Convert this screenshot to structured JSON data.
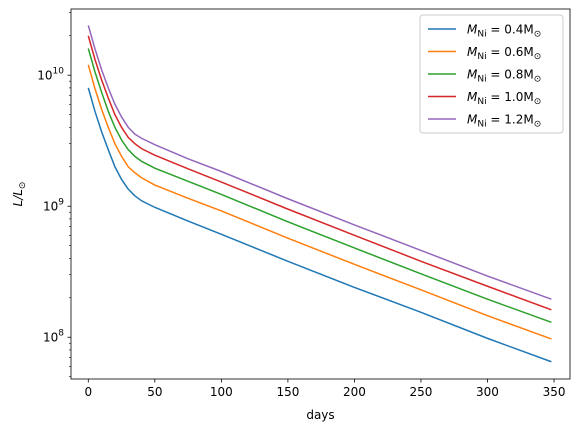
{
  "chart_data": {
    "type": "line",
    "title": "",
    "xlabel": "days",
    "ylabel": "L/L_⊙",
    "yscale": "log",
    "xlim": [
      -13,
      362
    ],
    "ylim": [
      48000000,
      32000000000
    ],
    "xticks": [
      0,
      50,
      100,
      150,
      200,
      250,
      300,
      350
    ],
    "xtick_labels": [
      "0",
      "50",
      "100",
      "150",
      "200",
      "250",
      "300",
      "350"
    ],
    "yticks": [
      100000000,
      1000000000,
      10000000000
    ],
    "ytick_labels": [
      {
        "base": "10",
        "exp": "8"
      },
      {
        "base": "10",
        "exp": "9"
      },
      {
        "base": "10",
        "exp": "10"
      }
    ],
    "grid": false,
    "legend_position": "top-right",
    "x": [
      0,
      5,
      10,
      15,
      20,
      25,
      30,
      35,
      40,
      50,
      75,
      100,
      150,
      200,
      250,
      300,
      348
    ],
    "series": [
      {
        "name": "M_Ni = 0.4M_⊙",
        "label_main": "M",
        "label_sub": "Ni",
        "label_value": " = 0.4M",
        "label_sun": "⊙",
        "color": "#1f77b4",
        "values": [
          8000000000.0,
          5300000000.0,
          3700000000.0,
          2700000000.0,
          2000000000.0,
          1600000000.0,
          1350000000.0,
          1200000000.0,
          1100000000.0,
          980000000.0,
          770000000.0,
          610000000.0,
          380000000.0,
          240000000.0,
          155000000.0,
          98000000.0,
          65000000.0
        ]
      },
      {
        "name": "M_Ni = 0.6M_⊙",
        "label_main": "M",
        "label_sub": "Ni",
        "label_value": " = 0.6M",
        "label_sun": "⊙",
        "color": "#ff7f0e",
        "values": [
          12000000000.0,
          7900000000.0,
          5500000000.0,
          4000000000.0,
          3000000000.0,
          2400000000.0,
          2000000000.0,
          1800000000.0,
          1650000000.0,
          1450000000.0,
          1150000000.0,
          920000000.0,
          570000000.0,
          360000000.0,
          230000000.0,
          146000000.0,
          97000000.0
        ]
      },
      {
        "name": "M_Ni = 0.8M_⊙",
        "label_main": "M",
        "label_sub": "Ni",
        "label_value": " = 0.8M",
        "label_sun": "⊙",
        "color": "#2ca02c",
        "values": [
          16000000000.0,
          10600000000.0,
          7400000000.0,
          5300000000.0,
          4000000000.0,
          3200000000.0,
          2700000000.0,
          2400000000.0,
          2200000000.0,
          1950000000.0,
          1550000000.0,
          1230000000.0,
          760000000.0,
          480000000.0,
          305000000.0,
          195000000.0,
          130000000.0
        ]
      },
      {
        "name": "M_Ni = 1.0M_⊙",
        "label_main": "M",
        "label_sub": "Ni",
        "label_value": " = 1.0M",
        "label_sun": "⊙",
        "color": "#d62728",
        "values": [
          20000000000.0,
          13200000000.0,
          9200000000.0,
          6700000000.0,
          5000000000.0,
          4000000000.0,
          3350000000.0,
          3000000000.0,
          2750000000.0,
          2450000000.0,
          1930000000.0,
          1530000000.0,
          950000000.0,
          600000000.0,
          380000000.0,
          245000000.0,
          162000000.0
        ]
      },
      {
        "name": "M_Ni = 1.2M_⊙",
        "label_main": "M",
        "label_sub": "Ni",
        "label_value": " = 1.2M",
        "label_sun": "⊙",
        "color": "#9467bd",
        "values": [
          24000000000.0,
          15900000000.0,
          11000000000.0,
          8000000000.0,
          6000000000.0,
          4800000000.0,
          4000000000.0,
          3550000000.0,
          3300000000.0,
          2950000000.0,
          2300000000.0,
          1840000000.0,
          1140000000.0,
          720000000.0,
          460000000.0,
          293000000.0,
          195000000.0
        ]
      }
    ]
  }
}
